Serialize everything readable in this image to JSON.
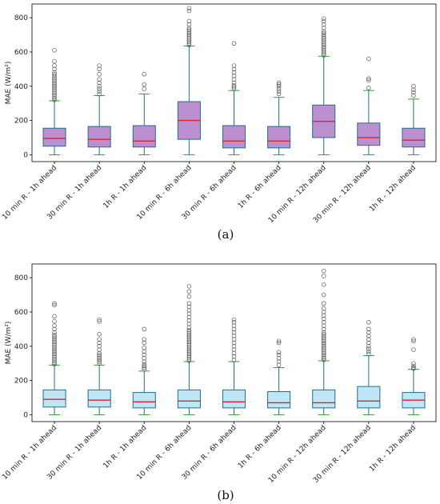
{
  "colors": {
    "box_a": "#bc8fd0",
    "box_b": "#bfe6f5",
    "edge": "#1f6f8b",
    "whisker": "#1f6f8b",
    "cap": "#2ca02c",
    "median": "#d62728",
    "flier": "#555555"
  },
  "chart_data": [
    {
      "type": "box",
      "panel_label": "(a)",
      "xlabel": "",
      "ylabel": "MAE (W/m²)",
      "ylim": [
        -40,
        880
      ],
      "yticks": [
        0,
        200,
        400,
        600,
        800
      ],
      "categories": [
        "10 min R - 1h ahead",
        "30 min R - 1h ahead",
        "1h R - 1h ahead",
        "10 min R - 6h ahead",
        "30 min R - 6h ahead",
        "1h R - 6h ahead",
        "10 min R - 12h ahead",
        "30 min R - 12h ahead",
        "1h R - 12h ahead"
      ],
      "boxes": [
        {
          "whislo": 0,
          "q1": 50,
          "med": 95,
          "q3": 155,
          "whishi": 315,
          "fliers": [
            320,
            330,
            340,
            350,
            360,
            370,
            380,
            390,
            400,
            410,
            420,
            430,
            440,
            450,
            460,
            470,
            480,
            500,
            520,
            545,
            610
          ]
        },
        {
          "whislo": 0,
          "q1": 45,
          "med": 90,
          "q3": 165,
          "whishi": 345,
          "fliers": [
            355,
            370,
            385,
            400,
            420,
            440,
            470,
            500,
            520
          ]
        },
        {
          "whislo": 0,
          "q1": 45,
          "med": 80,
          "q3": 170,
          "whishi": 355,
          "fliers": [
            385,
            410,
            470
          ]
        },
        {
          "whislo": 0,
          "q1": 90,
          "med": 200,
          "q3": 310,
          "whishi": 635,
          "fliers": [
            640,
            650,
            660,
            670,
            680,
            690,
            700,
            710,
            720,
            730,
            740,
            760,
            780,
            840,
            855
          ]
        },
        {
          "whislo": 0,
          "q1": 40,
          "med": 80,
          "q3": 170,
          "whishi": 375,
          "fliers": [
            385,
            395,
            405,
            420,
            440,
            460,
            480,
            500,
            520,
            650
          ]
        },
        {
          "whislo": 0,
          "q1": 40,
          "med": 80,
          "q3": 165,
          "whishi": 335,
          "fliers": [
            355,
            370,
            385,
            400,
            410,
            420
          ]
        },
        {
          "whislo": 0,
          "q1": 100,
          "med": 195,
          "q3": 290,
          "whishi": 575,
          "fliers": [
            580,
            590,
            600,
            610,
            620,
            630,
            640,
            650,
            660,
            670,
            680,
            690,
            700,
            710,
            720,
            740,
            760,
            780,
            795
          ]
        },
        {
          "whislo": 0,
          "q1": 55,
          "med": 100,
          "q3": 185,
          "whishi": 375,
          "fliers": [
            390,
            435,
            445,
            560
          ]
        },
        {
          "whislo": 0,
          "q1": 45,
          "med": 85,
          "q3": 155,
          "whishi": 325,
          "fliers": [
            345,
            365,
            380,
            400
          ]
        }
      ]
    },
    {
      "type": "box",
      "panel_label": "(b)",
      "xlabel": "",
      "ylabel": "MAE (W/m²)",
      "ylim": [
        -40,
        880
      ],
      "yticks": [
        0,
        200,
        400,
        600,
        800
      ],
      "categories": [
        "10 min R - 1h ahead",
        "30 min R - 1h ahead",
        "1h R - 1h ahead",
        "10 min R - 6h ahead",
        "30 min R - 6h ahead",
        "1h R - 6h ahead",
        "10 min R - 12h ahead",
        "30 min R - 12h ahead",
        "1h R - 12h ahead"
      ],
      "boxes": [
        {
          "whislo": 0,
          "q1": 45,
          "med": 90,
          "q3": 145,
          "whishi": 290,
          "fliers": [
            295,
            305,
            315,
            325,
            335,
            345,
            355,
            365,
            375,
            385,
            395,
            405,
            415,
            425,
            435,
            445,
            455,
            465,
            480,
            500,
            520,
            545,
            575,
            640,
            650
          ]
        },
        {
          "whislo": 0,
          "q1": 45,
          "med": 85,
          "q3": 145,
          "whishi": 290,
          "fliers": [
            300,
            310,
            320,
            330,
            340,
            350,
            360,
            380,
            400,
            420,
            440,
            470,
            545,
            555
          ]
        },
        {
          "whislo": 0,
          "q1": 40,
          "med": 75,
          "q3": 130,
          "whishi": 255,
          "fliers": [
            265,
            275,
            285,
            295,
            310,
            330,
            350,
            370,
            390,
            420,
            440,
            500
          ]
        },
        {
          "whislo": 0,
          "q1": 40,
          "med": 80,
          "q3": 145,
          "whishi": 310,
          "fliers": [
            315,
            325,
            335,
            345,
            355,
            365,
            375,
            385,
            395,
            405,
            415,
            425,
            435,
            445,
            455,
            465,
            475,
            485,
            495,
            510,
            530,
            550,
            570,
            590,
            610,
            630,
            650,
            690,
            720,
            750
          ]
        },
        {
          "whislo": 0,
          "q1": 40,
          "med": 75,
          "q3": 145,
          "whishi": 310,
          "fliers": [
            320,
            340,
            360,
            380,
            400,
            420,
            440,
            460,
            480,
            500,
            520,
            540,
            555
          ]
        },
        {
          "whislo": 0,
          "q1": 40,
          "med": 70,
          "q3": 135,
          "whishi": 275,
          "fliers": [
            290,
            310,
            330,
            350,
            365,
            420,
            430
          ]
        },
        {
          "whislo": 0,
          "q1": 40,
          "med": 70,
          "q3": 145,
          "whishi": 315,
          "fliers": [
            320,
            330,
            340,
            350,
            360,
            370,
            380,
            390,
            400,
            410,
            420,
            430,
            440,
            450,
            460,
            470,
            480,
            500,
            520,
            540,
            560,
            580,
            600,
            620,
            650,
            700,
            760,
            810,
            840
          ]
        },
        {
          "whislo": 0,
          "q1": 40,
          "med": 80,
          "q3": 165,
          "whishi": 345,
          "fliers": [
            355,
            370,
            385,
            400,
            420,
            440,
            460,
            480,
            500,
            540
          ]
        },
        {
          "whislo": 0,
          "q1": 40,
          "med": 85,
          "q3": 130,
          "whishi": 265,
          "fliers": [
            270,
            275,
            285,
            300,
            380,
            430,
            440
          ]
        }
      ]
    }
  ]
}
